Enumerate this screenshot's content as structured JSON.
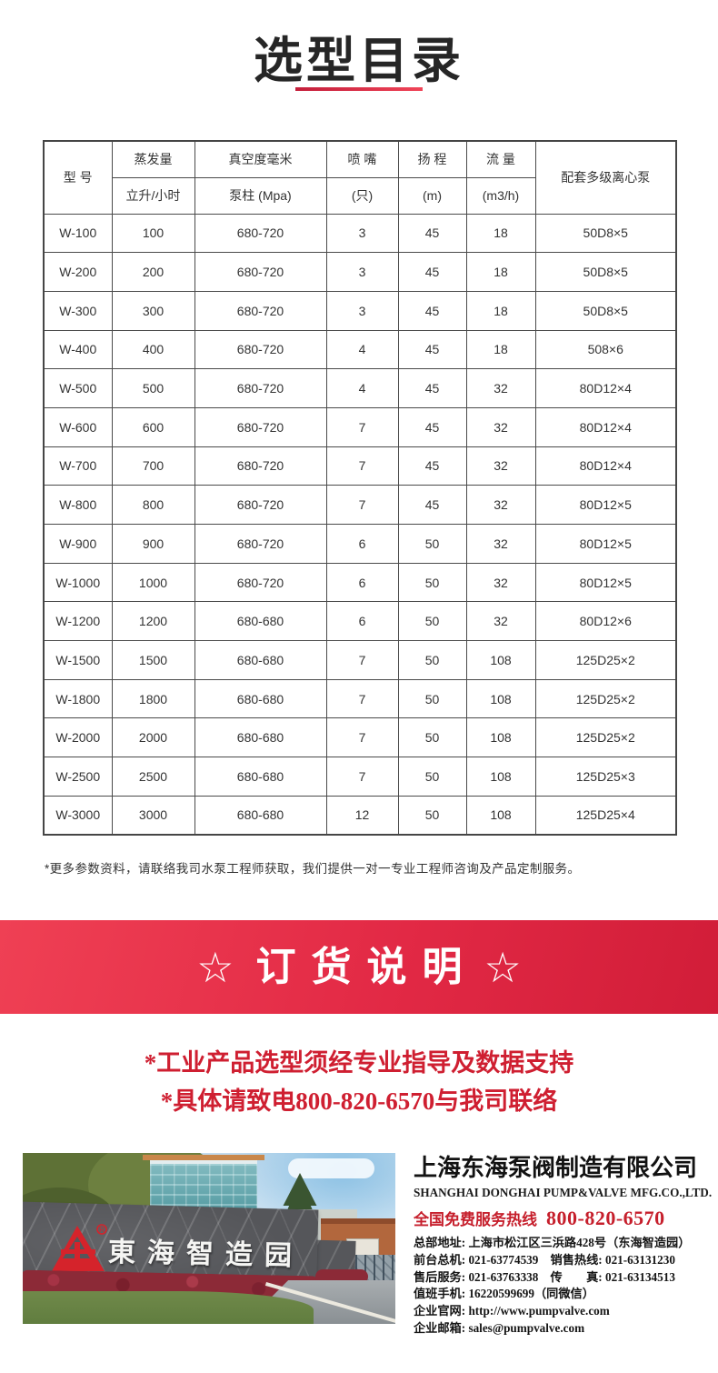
{
  "header": {
    "title": "选型目录"
  },
  "table": {
    "headers": {
      "model": "型 号",
      "evaporation": "蒸发量",
      "evaporation_unit": "立升/小时",
      "vacuum": "真空度毫米",
      "vacuum_unit": "泵柱 (Mpa)",
      "nozzle": "喷 嘴",
      "nozzle_unit": "(只)",
      "head": "扬 程",
      "head_unit": "(m)",
      "flow": "流 量",
      "flow_unit": "(m3/h)",
      "pump": "配套多级离心泵"
    },
    "rows": [
      [
        "W-100",
        "100",
        "680-720",
        "3",
        "45",
        "18",
        "50D8×5"
      ],
      [
        "W-200",
        "200",
        "680-720",
        "3",
        "45",
        "18",
        "50D8×5"
      ],
      [
        "W-300",
        "300",
        "680-720",
        "3",
        "45",
        "18",
        "50D8×5"
      ],
      [
        "W-400",
        "400",
        "680-720",
        "4",
        "45",
        "18",
        "508×6"
      ],
      [
        "W-500",
        "500",
        "680-720",
        "4",
        "45",
        "32",
        "80D12×4"
      ],
      [
        "W-600",
        "600",
        "680-720",
        "7",
        "45",
        "32",
        "80D12×4"
      ],
      [
        "W-700",
        "700",
        "680-720",
        "7",
        "45",
        "32",
        "80D12×4"
      ],
      [
        "W-800",
        "800",
        "680-720",
        "7",
        "45",
        "32",
        "80D12×5"
      ],
      [
        "W-900",
        "900",
        "680-720",
        "6",
        "50",
        "32",
        "80D12×5"
      ],
      [
        "W-1000",
        "1000",
        "680-720",
        "6",
        "50",
        "32",
        "80D12×5"
      ],
      [
        "W-1200",
        "1200",
        "680-680",
        "6",
        "50",
        "32",
        "80D12×6"
      ],
      [
        "W-1500",
        "1500",
        "680-680",
        "7",
        "50",
        "108",
        "125D25×2"
      ],
      [
        "W-1800",
        "1800",
        "680-680",
        "7",
        "50",
        "108",
        "125D25×2"
      ],
      [
        "W-2000",
        "2000",
        "680-680",
        "7",
        "50",
        "108",
        "125D25×2"
      ],
      [
        "W-2500",
        "2500",
        "680-680",
        "7",
        "50",
        "108",
        "125D25×3"
      ],
      [
        "W-3000",
        "3000",
        "680-680",
        "12",
        "50",
        "108",
        "125D25×4"
      ]
    ],
    "footnote": "*更多参数资料，请联络我司水泵工程师获取，我们提供一对一专业工程师咨询及产品定制服务。"
  },
  "banner": {
    "star": "☆",
    "title": "订货说明",
    "notes": [
      "*工业产品选型须经专业指导及数据支持",
      "*具体请致电800-820-6570与我司联络"
    ]
  },
  "photo": {
    "wall_text": "東海智造园",
    "logo": "donghai-logo"
  },
  "company": {
    "name_cn": "上海东海泵阀制造有限公司",
    "name_en": "SHANGHAI DONGHAI PUMP&VALVE MFG.CO.,LTD.",
    "hotline_label": "全国免费服务热线",
    "hotline_number": "800-820-6570",
    "contact_lines": [
      "总部地址: 上海市松江区三浜路428号（东海智造园）",
      "前台总机: 021-63774539　销售热线: 021-63131230",
      "售后服务: 021-63763338　传　　真: 021-63134513",
      "值班手机: 16220599699（同微信）",
      "企业官网: http://www.pumpvalve.com",
      "企业邮箱: sales@pumpvalve.com"
    ]
  },
  "colors": {
    "accent_red": "#d2203a",
    "banner_gradient_start": "#ef4054",
    "banner_gradient_end": "#d11d38",
    "table_border": "#4a4a4a"
  }
}
